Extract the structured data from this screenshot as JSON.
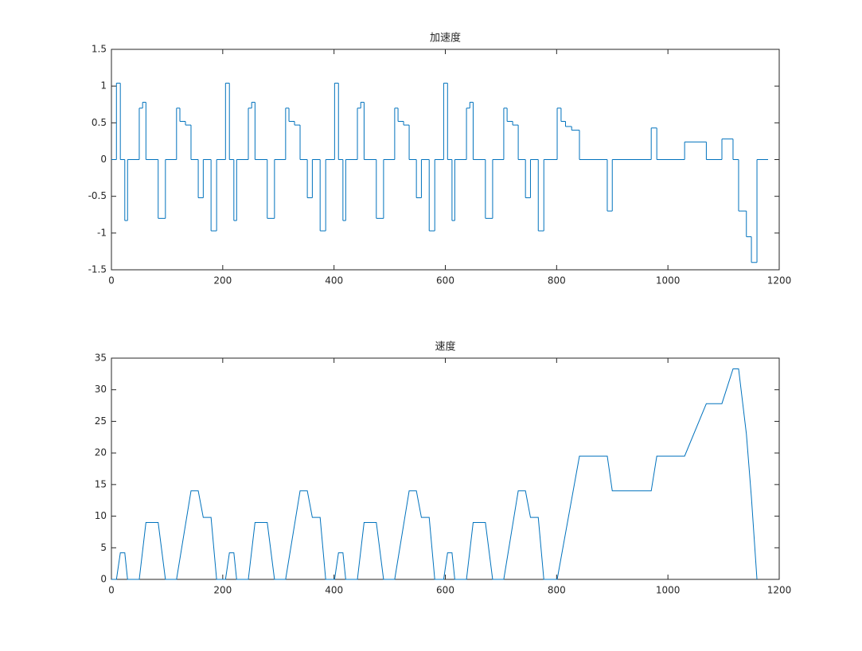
{
  "chart_data": [
    {
      "type": "stairs",
      "title": "加速度",
      "color": "#0072bd",
      "x": [
        0,
        9,
        16,
        24,
        29,
        50,
        56,
        62,
        84,
        97,
        117,
        123,
        133,
        143,
        156,
        165,
        179,
        189,
        205,
        212,
        220,
        225,
        246,
        252,
        258,
        280,
        293,
        313,
        319,
        329,
        339,
        352,
        361,
        375,
        385,
        401,
        408,
        416,
        421,
        442,
        448,
        454,
        476,
        489,
        509,
        515,
        525,
        535,
        548,
        557,
        571,
        581,
        597,
        604,
        612,
        617,
        638,
        644,
        650,
        672,
        685,
        705,
        711,
        721,
        731,
        744,
        753,
        767,
        777,
        801,
        808,
        816,
        827,
        841,
        891,
        900,
        970,
        980,
        1030,
        1069,
        1097,
        1117,
        1127,
        1141,
        1150,
        1160,
        1180
      ],
      "values": [
        0,
        1.04,
        0,
        -0.83,
        0,
        0.7,
        0.78,
        0,
        -0.8,
        0,
        0.7,
        0.52,
        0.47,
        0,
        -0.52,
        0,
        -0.97,
        0,
        1.04,
        0,
        -0.83,
        0,
        0.7,
        0.78,
        0,
        -0.8,
        0,
        0.7,
        0.52,
        0.47,
        0,
        -0.52,
        0,
        -0.97,
        0,
        1.04,
        0,
        -0.83,
        0,
        0.7,
        0.78,
        0,
        -0.8,
        0,
        0.7,
        0.52,
        0.47,
        0,
        -0.52,
        0,
        -0.97,
        0,
        1.04,
        0,
        -0.83,
        0,
        0.7,
        0.78,
        0,
        -0.8,
        0,
        0.7,
        0.52,
        0.47,
        0,
        -0.52,
        0,
        -0.97,
        0,
        0.7,
        0.52,
        0.45,
        0.4,
        0,
        -0.7,
        0,
        0.43,
        0,
        0.24,
        0,
        0.28,
        0,
        -0.7,
        -1.05,
        -1.4,
        0,
        0
      ],
      "xlim": [
        0,
        1200
      ],
      "xticks": [
        0,
        200,
        400,
        600,
        800,
        1000,
        1200
      ],
      "ylim": [
        -1.5,
        1.5
      ],
      "yticks": [
        -1.5,
        -1,
        -0.5,
        0,
        0.5,
        1,
        1.5
      ]
    },
    {
      "type": "line",
      "title": "速度",
      "color": "#0072bd",
      "x": [
        0,
        9,
        16,
        24,
        29,
        50,
        62,
        84,
        97,
        117,
        143,
        156,
        165,
        179,
        189,
        205,
        212,
        220,
        225,
        246,
        258,
        280,
        293,
        313,
        339,
        352,
        361,
        375,
        385,
        401,
        408,
        416,
        421,
        442,
        454,
        476,
        489,
        509,
        535,
        548,
        557,
        571,
        581,
        597,
        604,
        612,
        617,
        638,
        650,
        672,
        685,
        705,
        731,
        744,
        753,
        767,
        777,
        801,
        841,
        891,
        900,
        970,
        980,
        1030,
        1069,
        1097,
        1117,
        1127,
        1141,
        1150,
        1160
      ],
      "values": [
        0,
        0,
        4.2,
        4.2,
        0,
        0,
        9,
        9,
        0,
        0,
        14,
        14,
        9.8,
        9.8,
        0,
        0,
        4.2,
        4.2,
        0,
        0,
        9,
        9,
        0,
        0,
        14,
        14,
        9.8,
        9.8,
        0,
        0,
        4.2,
        4.2,
        0,
        0,
        9,
        9,
        0,
        0,
        14,
        14,
        9.8,
        9.8,
        0,
        0,
        4.2,
        4.2,
        0,
        0,
        9,
        9,
        0,
        0,
        14,
        14,
        9.8,
        9.8,
        0,
        0,
        19.5,
        19.5,
        14,
        14,
        19.5,
        19.5,
        27.8,
        27.8,
        33.3,
        33.3,
        23,
        13,
        0
      ],
      "xlim": [
        0,
        1200
      ],
      "xticks": [
        0,
        200,
        400,
        600,
        800,
        1000,
        1200
      ],
      "ylim": [
        0,
        35
      ],
      "yticks": [
        0,
        5,
        10,
        15,
        20,
        25,
        30,
        35
      ]
    }
  ]
}
